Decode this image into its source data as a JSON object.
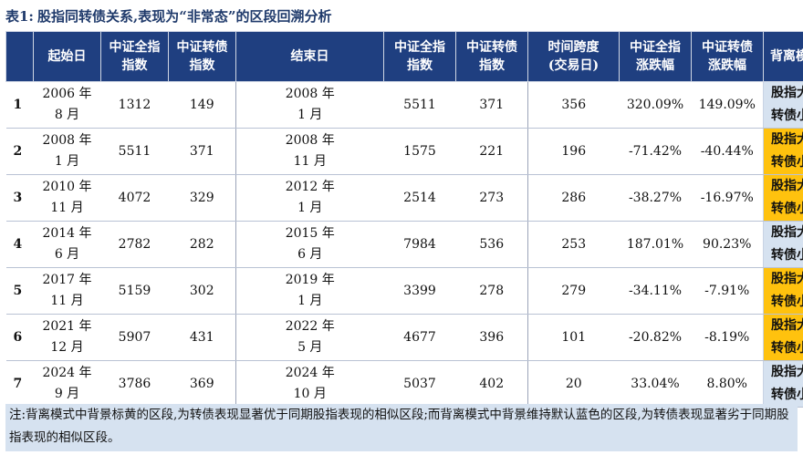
{
  "title": {
    "label": "表1:",
    "text": "股指同转债关系,表现为“非常态”的区段回溯分析"
  },
  "headers": [
    {
      "l1": "",
      "l2": ""
    },
    {
      "l1": "起始日",
      "l2": ""
    },
    {
      "l1": "中证全指",
      "l2": "指数"
    },
    {
      "l1": "中证转债",
      "l2": "指数"
    },
    {
      "l1": "结束日",
      "l2": ""
    },
    {
      "l1": "中证全指",
      "l2": "指数"
    },
    {
      "l1": "中证转债",
      "l2": "指数"
    },
    {
      "l1": "时间跨度",
      "l2": "(交易日)"
    },
    {
      "l1": "中证全指",
      "l2": "涨跌幅"
    },
    {
      "l1": "中证转债",
      "l2": "涨跌幅"
    },
    {
      "l1": "背离模式",
      "l2": ""
    }
  ],
  "rows": [
    {
      "idx": "1",
      "start_a": "2006 年",
      "start_b": "8 月",
      "csi_start": "1312",
      "cb_start": "149",
      "end_a": "2008 年",
      "end_b": "1 月",
      "csi_end": "5511",
      "cb_end": "371",
      "span": "356",
      "csi_chg": "320.09%",
      "cb_chg": "149.09%",
      "mode_a": "股指大涨,",
      "mode_b": "转债小涨",
      "highlight": false
    },
    {
      "idx": "2",
      "start_a": "2008 年",
      "start_b": "1 月",
      "csi_start": "5511",
      "cb_start": "371",
      "end_a": "2008 年",
      "end_b": "11 月",
      "csi_end": "1575",
      "cb_end": "221",
      "span": "196",
      "csi_chg": "-71.42%",
      "cb_chg": "-40.44%",
      "mode_a": "股指大跌,",
      "mode_b": "转债小跌",
      "highlight": true
    },
    {
      "idx": "3",
      "start_a": "2010 年",
      "start_b": "11 月",
      "csi_start": "4072",
      "cb_start": "329",
      "end_a": "2012 年",
      "end_b": "1 月",
      "csi_end": "2514",
      "cb_end": "273",
      "span": "286",
      "csi_chg": "-38.27%",
      "cb_chg": "-16.97%",
      "mode_a": "股指大跌,",
      "mode_b": "转债小跌",
      "highlight": true
    },
    {
      "idx": "4",
      "start_a": "2014 年",
      "start_b": "6 月",
      "csi_start": "2782",
      "cb_start": "282",
      "end_a": "2015 年",
      "end_b": "6 月",
      "csi_end": "7984",
      "cb_end": "536",
      "span": "253",
      "csi_chg": "187.01%",
      "cb_chg": "90.23%",
      "mode_a": "股指大涨,",
      "mode_b": "转债小涨",
      "highlight": false
    },
    {
      "idx": "5",
      "start_a": "2017 年",
      "start_b": "11 月",
      "csi_start": "5159",
      "cb_start": "302",
      "end_a": "2019 年",
      "end_b": "1 月",
      "csi_end": "3399",
      "cb_end": "278",
      "span": "279",
      "csi_chg": "-34.11%",
      "cb_chg": "-7.91%",
      "mode_a": "股指大跌,",
      "mode_b": "转债小跌",
      "highlight": true
    },
    {
      "idx": "6",
      "start_a": "2021 年",
      "start_b": "12 月",
      "csi_start": "5907",
      "cb_start": "431",
      "end_a": "2022 年",
      "end_b": "5 月",
      "csi_end": "4677",
      "cb_end": "396",
      "span": "101",
      "csi_chg": "-20.82%",
      "cb_chg": "-8.19%",
      "mode_a": "股指大跌,",
      "mode_b": "转债小跌",
      "highlight": true
    },
    {
      "idx": "7",
      "start_a": "2024 年",
      "start_b": "9 月",
      "csi_start": "3786",
      "cb_start": "369",
      "end_a": "2024 年",
      "end_b": "10 月",
      "csi_end": "5037",
      "cb_end": "402",
      "span": "20",
      "csi_chg": "33.04%",
      "cb_chg": "8.80%",
      "mode_a": "股指大涨,",
      "mode_b": "转债小涨",
      "highlight": false
    }
  ],
  "note": "注:背离模式中背景标黄的区段,为转债表现显著优于同期股指表现的相似区段;而背离模式中背景维持默认蓝色的区段,为转债表现显著劣于同期股指表现的相似区段。",
  "colors": {
    "header_bg": "#1f3f80",
    "title_color": "#1f3a6b",
    "mode_blue": "#d6e2f0",
    "mode_yellow": "#ffc20e",
    "note_bg": "#d6e2f0"
  }
}
